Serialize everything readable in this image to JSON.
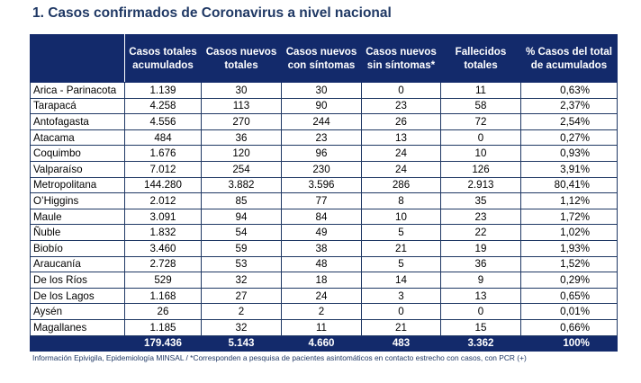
{
  "title": "1. Casos confirmados de Coronavirus a nivel nacional",
  "table": {
    "headers": [
      "",
      "Casos totales acumulados",
      "Casos nuevos totales",
      "Casos nuevos con síntomas",
      "Casos nuevos sin síntomas*",
      "Fallecidos totales",
      "% Casos del total de acumulados"
    ],
    "rows": [
      [
        "Arica - Parinacota",
        "1.139",
        "30",
        "30",
        "0",
        "11",
        "0,63%"
      ],
      [
        "Tarapacá",
        "4.258",
        "113",
        "90",
        "23",
        "58",
        "2,37%"
      ],
      [
        "Antofagasta",
        "4.556",
        "270",
        "244",
        "26",
        "72",
        "2,54%"
      ],
      [
        "Atacama",
        "484",
        "36",
        "23",
        "13",
        "0",
        "0,27%"
      ],
      [
        "Coquimbo",
        "1.676",
        "120",
        "96",
        "24",
        "10",
        "0,93%"
      ],
      [
        "Valparaíso",
        "7.012",
        "254",
        "230",
        "24",
        "126",
        "3,91%"
      ],
      [
        "Metropolitana",
        "144.280",
        "3.882",
        "3.596",
        "286",
        "2.913",
        "80,41%"
      ],
      [
        "O’Higgins",
        "2.012",
        "85",
        "77",
        "8",
        "35",
        "1,12%"
      ],
      [
        "Maule",
        "3.091",
        "94",
        "84",
        "10",
        "23",
        "1,72%"
      ],
      [
        "Ñuble",
        "1.832",
        "54",
        "49",
        "5",
        "22",
        "1,02%"
      ],
      [
        "Biobío",
        "3.460",
        "59",
        "38",
        "21",
        "19",
        "1,93%"
      ],
      [
        "Araucanía",
        "2.728",
        "53",
        "48",
        "5",
        "36",
        "1,52%"
      ],
      [
        "De los Ríos",
        "529",
        "32",
        "18",
        "14",
        "9",
        "0,29%"
      ],
      [
        "De los Lagos",
        "1.168",
        "27",
        "24",
        "3",
        "13",
        "0,65%"
      ],
      [
        "Aysén",
        "26",
        "2",
        "2",
        "0",
        "0",
        "0,01%"
      ],
      [
        "Magallanes",
        "1.185",
        "32",
        "11",
        "21",
        "15",
        "0,66%"
      ]
    ],
    "totals": [
      "",
      "179.436",
      "5.143",
      "4.660",
      "483",
      "3.362",
      "100%"
    ]
  },
  "footnote": "Información Epivigila, Epidemiología MINSAL / *Corresponden a pesquisa de pacientes asintomáticos en contacto estrecho con casos, con PCR (+)",
  "colors": {
    "header_bg": "#132a6b",
    "title": "#1f3864",
    "grid": "#1f3864"
  }
}
